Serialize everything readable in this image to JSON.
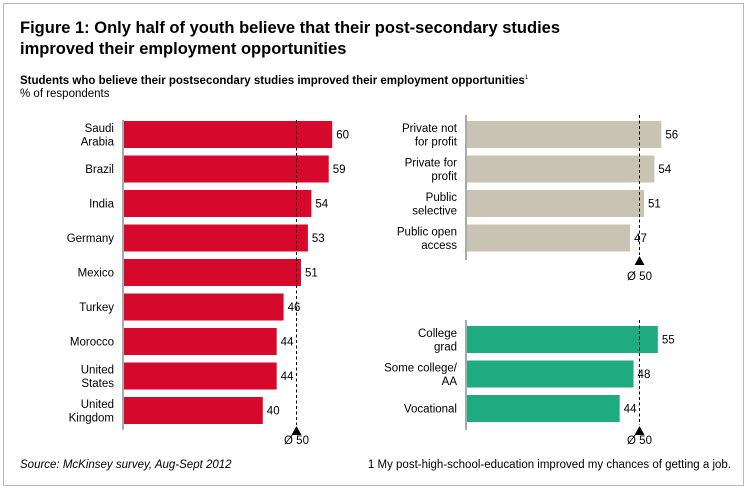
{
  "header": {
    "title_line1": "Figure 1: Only half of youth believe that their post-secondary studies",
    "title_line2": "improved their employment opportunities",
    "subtitle": "Students who believe their postsecondary studies improved their employment opportunities",
    "subtitle_sup": "1",
    "unit": "% of respondents"
  },
  "footer": {
    "source": "Source: McKinsey survey, Aug-Sept 2012",
    "footnote": "1  My post-high-school-education improved my chances of getting a job."
  },
  "colors": {
    "country_bar": "#d6082b",
    "institution_bar": "#c8c3b2",
    "education_bar": "#1fab80"
  },
  "chart_data": [
    {
      "type": "bar",
      "orientation": "horizontal",
      "categories": [
        [
          "Saudi",
          "Arabia"
        ],
        [
          "Brazil"
        ],
        [
          "India"
        ],
        [
          "Germany"
        ],
        [
          "Mexico"
        ],
        [
          "Turkey"
        ],
        [
          "Morocco"
        ],
        [
          "United",
          "States"
        ],
        [
          "United",
          "Kingdom"
        ]
      ],
      "values": [
        60,
        59,
        54,
        53,
        51,
        46,
        44,
        44,
        40
      ],
      "average": 50,
      "average_label": "Ø 50",
      "color": "#d6082b"
    },
    {
      "type": "bar",
      "orientation": "horizontal",
      "categories": [
        [
          "Private not",
          "for profit"
        ],
        [
          "Private for",
          "profit"
        ],
        [
          "Public",
          "selective"
        ],
        [
          "Public open",
          "access"
        ]
      ],
      "values": [
        56,
        54,
        51,
        47
      ],
      "average": 50,
      "average_label": "Ø 50",
      "color": "#c8c3b2"
    },
    {
      "type": "bar",
      "orientation": "horizontal",
      "categories": [
        [
          "College",
          "grad"
        ],
        [
          "Some college/",
          "AA"
        ],
        [
          "Vocational"
        ]
      ],
      "values": [
        55,
        48,
        44
      ],
      "average": 50,
      "average_label": "Ø 50",
      "color": "#1fab80"
    }
  ]
}
